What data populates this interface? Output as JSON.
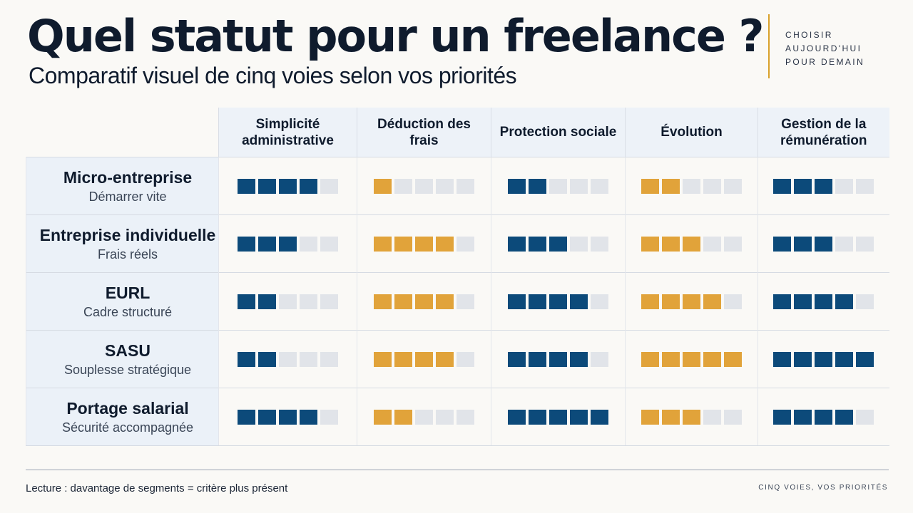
{
  "header": {
    "title": "Quel statut pour un freelance ?",
    "subtitle": "Comparatif visuel de cinq voies selon vos priorités",
    "tagline": [
      "CHOISIR",
      "AUJOURD'HUI",
      "POUR DEMAIN"
    ]
  },
  "colors": {
    "blue": "#0c4a7a",
    "gold": "#e1a33a",
    "empty": "#e1e4e9",
    "accent": "#d9a12b"
  },
  "criteria": [
    {
      "label": "Simplicité administrative",
      "color": "blue"
    },
    {
      "label": "Déduction des frais",
      "color": "gold"
    },
    {
      "label": "Protection sociale",
      "color": "blue"
    },
    {
      "label": "Évolution",
      "color": "gold"
    },
    {
      "label": "Gestion de la rémunération",
      "color": "blue"
    }
  ],
  "max_segments": 5,
  "statuses": [
    {
      "name": "Micro-entreprise",
      "subtitle": "Démarrer vite",
      "scores": [
        4,
        1,
        2,
        2,
        3
      ]
    },
    {
      "name": "Entreprise individuelle",
      "subtitle": "Frais réels",
      "scores": [
        3,
        4,
        3,
        3,
        3
      ]
    },
    {
      "name": "EURL",
      "subtitle": "Cadre structuré",
      "scores": [
        2,
        4,
        4,
        4,
        4
      ]
    },
    {
      "name": "SASU",
      "subtitle": "Souplesse stratégique",
      "scores": [
        2,
        4,
        4,
        5,
        5
      ]
    },
    {
      "name": "Portage salarial",
      "subtitle": "Sécurité accompagnée",
      "scores": [
        4,
        2,
        5,
        3,
        4
      ]
    }
  ],
  "footer": {
    "legend": "Lecture : davantage de segments = critère plus présent",
    "right": "CINQ VOIES, VOS PRIORITÉS"
  }
}
